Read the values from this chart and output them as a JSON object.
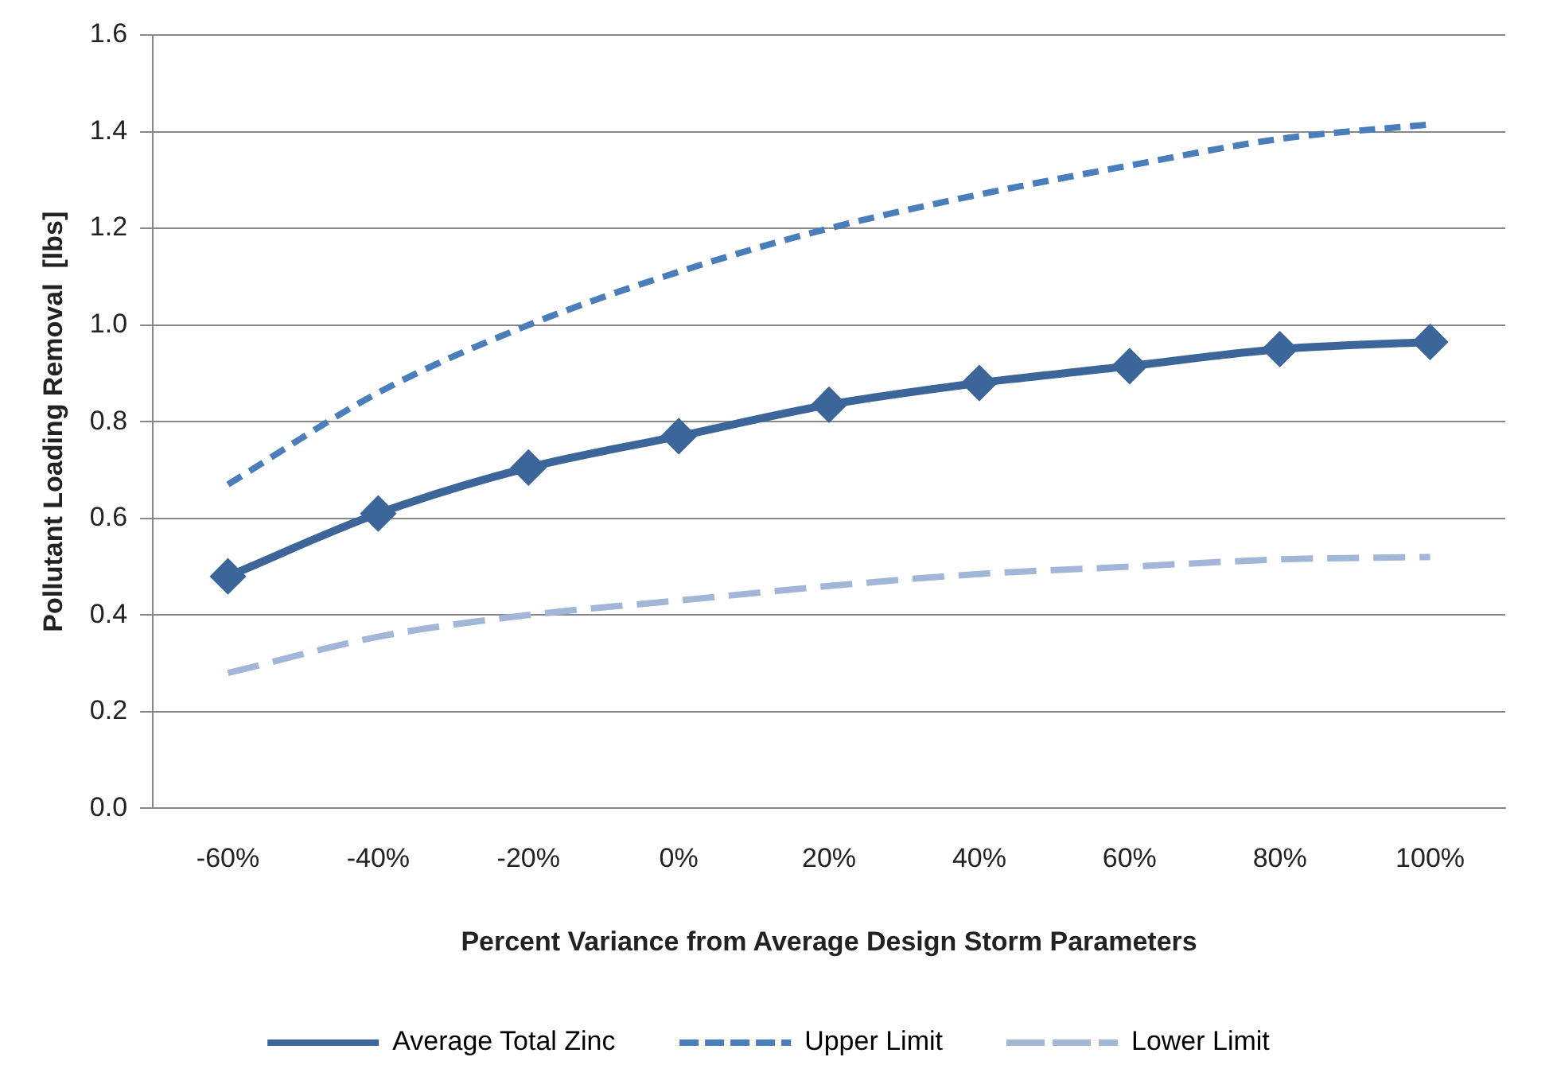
{
  "chart_data": {
    "type": "line",
    "xlabel": "Percent Variance from Average Design Storm Parameters",
    "ylabel": "Pollutant Loading Removal  [lbs]",
    "categories": [
      "-60%",
      "-40%",
      "-20%",
      "0%",
      "20%",
      "40%",
      "60%",
      "80%",
      "100%"
    ],
    "series": [
      {
        "name": "Average Total Zinc",
        "color": "#3c6699",
        "marker": "diamond",
        "line_style": "solid",
        "values": [
          0.48,
          0.61,
          0.705,
          0.77,
          0.835,
          0.88,
          0.915,
          0.95,
          0.965
        ]
      },
      {
        "name": "Upper Limit",
        "color": "#4a7ebb",
        "marker": "none",
        "line_style": "dashed",
        "values": [
          0.67,
          0.86,
          1.0,
          1.11,
          1.2,
          1.27,
          1.33,
          1.385,
          1.415
        ]
      },
      {
        "name": "Lower Limit",
        "color": "#a2b6d8",
        "marker": "none",
        "line_style": "dashed",
        "values": [
          0.28,
          0.355,
          0.4,
          0.43,
          0.46,
          0.485,
          0.5,
          0.515,
          0.52
        ]
      }
    ],
    "ylim": [
      0,
      1.6
    ],
    "yticks": [
      {
        "value": 0,
        "label": "0.0"
      },
      {
        "value": 0.2,
        "label": "0.2"
      },
      {
        "value": 0.4,
        "label": "0.4"
      },
      {
        "value": 0.6,
        "label": "0.6"
      },
      {
        "value": 0.8,
        "label": "0.8"
      },
      {
        "value": 1.0,
        "label": "1.0"
      },
      {
        "value": 1.2,
        "label": "1.2"
      },
      {
        "value": 1.4,
        "label": "1.4"
      },
      {
        "value": 1.6,
        "label": "1.6"
      }
    ],
    "grid": "y",
    "legend": "bottom"
  }
}
